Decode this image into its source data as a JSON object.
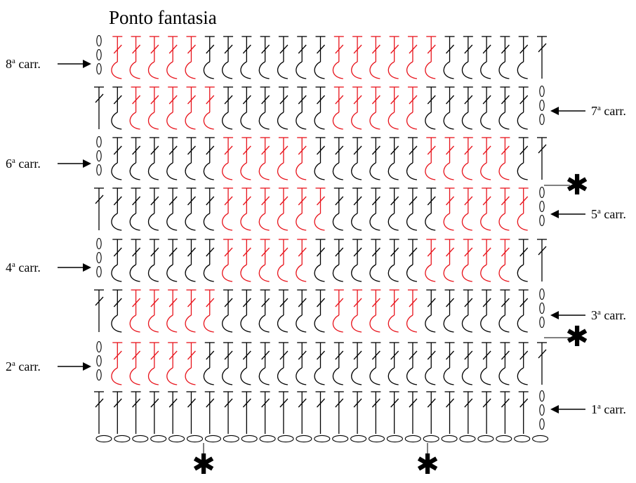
{
  "title": "Ponto fantasia",
  "row_labels": [
    {
      "num": "1",
      "sup": "a",
      "rest": " carr."
    },
    {
      "num": "2",
      "sup": "a",
      "rest": " carr."
    },
    {
      "num": "3",
      "sup": "a",
      "rest": " carr."
    },
    {
      "num": "4",
      "sup": "a",
      "rest": " carr."
    },
    {
      "num": "5",
      "sup": "a",
      "rest": " carr."
    },
    {
      "num": "6",
      "sup": "a",
      "rest": " carr."
    },
    {
      "num": "7",
      "sup": "a",
      "rest": " carr."
    },
    {
      "num": "8",
      "sup": "a",
      "rest": " carr."
    }
  ],
  "marker_symbol": "✱",
  "colors": {
    "black": "#000000",
    "red": "#e8141c"
  },
  "pattern": {
    "stitch_columns": 24,
    "foundation_chains": 25,
    "rows": [
      {
        "row": 1,
        "side": "right",
        "stitch": "plain",
        "reds": []
      },
      {
        "row": 2,
        "side": "left",
        "stitch": "curl",
        "reds": [
          0,
          1,
          2,
          3,
          4
        ]
      },
      {
        "row": 3,
        "side": "right",
        "stitch": "curl",
        "reds": [
          6,
          7,
          8,
          9,
          10,
          17,
          18,
          19,
          20,
          21
        ]
      },
      {
        "row": 4,
        "side": "left",
        "stitch": "curl",
        "reds": [
          6,
          7,
          8,
          9,
          10,
          17,
          18,
          19,
          20,
          21
        ]
      },
      {
        "row": 5,
        "side": "right",
        "stitch": "curl",
        "reds": [
          0,
          1,
          2,
          3,
          4,
          11,
          12,
          13,
          14,
          15,
          16
        ]
      },
      {
        "row": 6,
        "side": "left",
        "stitch": "curl",
        "reds": [
          6,
          7,
          8,
          9,
          10,
          17,
          18,
          19,
          20,
          21
        ]
      },
      {
        "row": 7,
        "side": "right",
        "stitch": "curl",
        "reds": [
          6,
          7,
          8,
          9,
          10,
          17,
          18,
          19,
          20,
          21
        ]
      },
      {
        "row": 8,
        "side": "left",
        "stitch": "curl",
        "reds": [
          0,
          1,
          2,
          3,
          4,
          12,
          13,
          14,
          15,
          16,
          17
        ]
      }
    ]
  }
}
